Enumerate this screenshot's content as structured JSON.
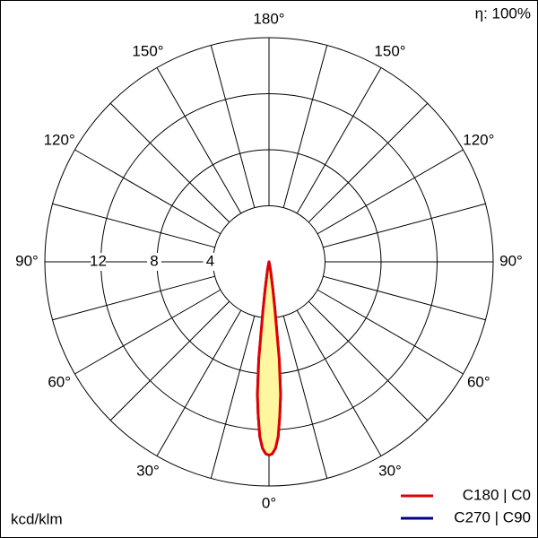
{
  "chart_data": {
    "type": "polar",
    "efficiency_label": "η: 100%",
    "unit_label": "kcd/klm",
    "rlim": [
      0,
      16
    ],
    "rticks": [
      4,
      8,
      12
    ],
    "rtick_angle": -90,
    "thetaticks": [
      {
        "value": 180,
        "label": "180°"
      },
      {
        "value": -150,
        "label": "150°"
      },
      {
        "value": 150,
        "label": "150°"
      },
      {
        "value": -120,
        "label": "120°"
      },
      {
        "value": 120,
        "label": "120°"
      },
      {
        "value": -90,
        "label": "90°"
      },
      {
        "value": 90,
        "label": "90°"
      },
      {
        "value": -60,
        "label": "60°"
      },
      {
        "value": 60,
        "label": "60°"
      },
      {
        "value": -30,
        "label": "30°"
      },
      {
        "value": 30,
        "label": "30°"
      },
      {
        "value": 0,
        "label": "0°"
      }
    ],
    "thetagrid": [
      -165,
      -150,
      -135,
      -120,
      -105,
      -90,
      -75,
      -60,
      -45,
      -30,
      -15,
      0,
      15,
      30,
      45,
      60,
      75,
      90,
      105,
      120,
      135,
      150,
      165,
      180
    ],
    "fill_color": "#fff6a0",
    "angles": [
      -15,
      -12,
      -10,
      -9,
      -8,
      -7,
      -6,
      -5,
      -4,
      -3,
      -2,
      -1,
      0,
      1,
      2,
      3,
      4,
      5,
      6,
      7,
      8,
      9,
      10,
      12,
      15
    ],
    "series": [
      {
        "name": "C270 | C90",
        "color": "#00008b",
        "values": [
          0,
          0.2,
          0.5,
          1,
          2,
          3.5,
          7,
          9.5,
          11,
          12.5,
          13.3,
          13.7,
          13.8,
          13.7,
          13.3,
          12.5,
          11,
          9.5,
          7,
          3.5,
          2,
          1,
          0.5,
          0.2,
          0
        ]
      },
      {
        "name": "C180 | C0",
        "color": "#e00000",
        "values": [
          0,
          0.2,
          0.5,
          1,
          2,
          3.5,
          7,
          9.5,
          11,
          12.5,
          13.3,
          13.7,
          13.8,
          13.7,
          13.3,
          12.5,
          11,
          9.5,
          7,
          3.5,
          2,
          1,
          0.5,
          0.2,
          0
        ]
      }
    ]
  }
}
